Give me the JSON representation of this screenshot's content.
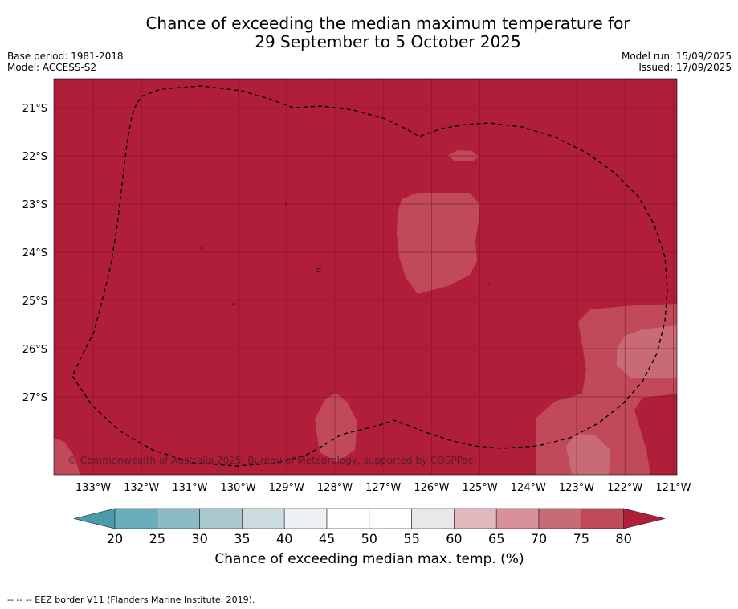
{
  "header": {
    "title_line1": "Chance of exceeding the median maximum temperature for",
    "title_line2": "29 September to 5 October 2025",
    "base_period": "Base period: 1981-2018",
    "model": "Model: ACCESS-S2",
    "model_run": "Model run: 15/09/2025",
    "issued": "Issued: 17/09/2025"
  },
  "map": {
    "lat_labels": [
      "21°S",
      "22°S",
      "23°S",
      "24°S",
      "25°S",
      "26°S",
      "27°S"
    ],
    "lon_labels": [
      "133°W",
      "132°W",
      "131°W",
      "130°W",
      "129°W",
      "128°W",
      "127°W",
      "126°W",
      "125°W",
      "124°W",
      "123°W",
      "122°W",
      "121°W"
    ],
    "copyright": "© Commonwealth of Australia 2025, Bureau of Meteorology, supported by COSPPac",
    "colors": {
      "background": "#b01e3a",
      "band_75": "#c14a5a",
      "band_70": "#c96a77"
    }
  },
  "colorbar": {
    "ticks": [
      "20",
      "25",
      "30",
      "35",
      "40",
      "45",
      "50",
      "55",
      "60",
      "65",
      "70",
      "75",
      "80"
    ],
    "label": "Chance of exceeding median max. temp. (%)",
    "colors": [
      "#6aaebb",
      "#8dbbc5",
      "#a9c8cd",
      "#cbdbdf",
      "#edf1f3",
      "#ffffff",
      "#ffffff",
      "#e8e8e8",
      "#e1b8be",
      "#d8909a",
      "#c96a77",
      "#c14a5a"
    ],
    "under_color": "#4a9bab",
    "over_color": "#b01e3a"
  },
  "footer": {
    "legend_text": "--  --  -- EEZ border V11 (Flanders Marine Institute, 2019)."
  }
}
